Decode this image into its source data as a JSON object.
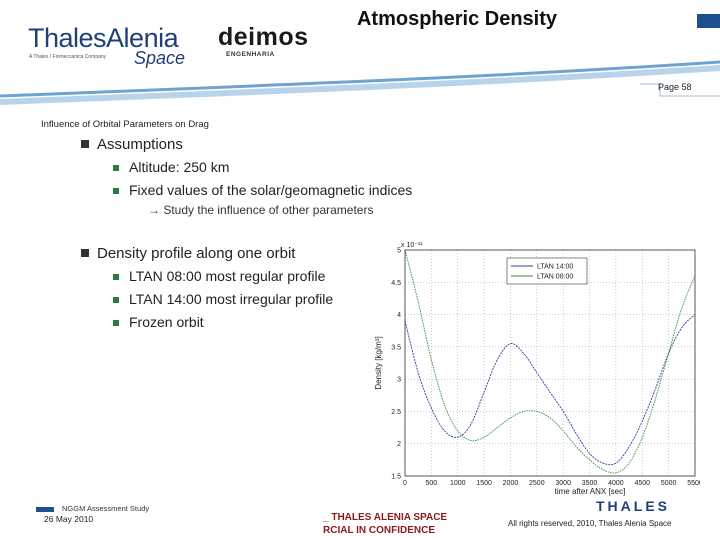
{
  "header": {
    "title": "Atmospheric Density",
    "logo_thales": {
      "name": "ThalesAlenia",
      "subtitle": "A Thales / Finmeccanica Company",
      "space": "Space"
    },
    "logo_deimos": {
      "name": "deimos",
      "subtitle": "ENGENHARIA"
    },
    "page_number": "Page 58"
  },
  "section_title": "Influence of Orbital Parameters on Drag",
  "bullets": [
    {
      "label": "Assumptions",
      "sub": [
        "Altitude: 250 km",
        "Fixed values of the solar/geomagnetic indices"
      ]
    },
    {
      "label": "Density profile along one orbit",
      "sub": [
        "LTAN 08:00 most regular profile",
        "LTAN 14:00 most irregular profile",
        "Frozen orbit"
      ]
    }
  ],
  "arrow_note": "→ Study the influence of other parameters",
  "chart_data": {
    "type": "line",
    "xlabel": "time after ANX [sec]",
    "ylabel": "Density [kg/m³]",
    "y_exponent": "x 10⁻¹¹",
    "xlim": [
      0,
      5500
    ],
    "ylim": [
      1.5,
      5
    ],
    "x_ticks": [
      "0",
      "500",
      "1000",
      "1500",
      "2000",
      "2500",
      "3000",
      "3500",
      "4000",
      "4500",
      "5000",
      "5500"
    ],
    "y_ticks": [
      "1.5",
      "2",
      "2.5",
      "3",
      "3.5",
      "4",
      "4.5",
      "5"
    ],
    "grid": true,
    "legend_position": "top-right",
    "series": [
      {
        "name": "LTAN 14:00",
        "color": "#2a3f9a",
        "x": [
          0,
          250,
          500,
          750,
          1000,
          1250,
          1500,
          1750,
          2000,
          2250,
          2500,
          2750,
          3000,
          3250,
          3500,
          3750,
          4000,
          4250,
          4500,
          4750,
          5000,
          5250,
          5500
        ],
        "y": [
          3.9,
          3.1,
          2.55,
          2.2,
          2.1,
          2.3,
          2.8,
          3.3,
          3.55,
          3.4,
          3.1,
          2.8,
          2.5,
          2.15,
          1.85,
          1.7,
          1.7,
          1.95,
          2.35,
          2.85,
          3.4,
          3.8,
          4.0
        ]
      },
      {
        "name": "LTAN 08:00",
        "color": "#2e8b3e",
        "x": [
          0,
          250,
          500,
          750,
          1000,
          1250,
          1500,
          1750,
          2000,
          2250,
          2500,
          2750,
          3000,
          3250,
          3500,
          3750,
          4000,
          4250,
          4500,
          4750,
          5000,
          5250,
          5500
        ],
        "y": [
          5.0,
          4.2,
          3.3,
          2.6,
          2.2,
          2.05,
          2.1,
          2.25,
          2.4,
          2.5,
          2.5,
          2.4,
          2.2,
          1.95,
          1.75,
          1.6,
          1.55,
          1.7,
          2.1,
          2.7,
          3.4,
          4.1,
          4.6
        ]
      }
    ]
  },
  "footer": {
    "project": "NGGM Assessment Study",
    "date": "26 May 2010",
    "company_line1": "_ THALES ALENIA SPACE",
    "company_line2": "RCIAL IN CONFIDENCE",
    "thales_logo": "THALES",
    "rights": "All rights reserved, 2010, Thales Alenia Space"
  },
  "colors": {
    "brand_blue": "#1f3f78",
    "accent": "#1e4f8f",
    "confidential": "#8b1a1a",
    "bullet_green": "#2b7a3e"
  }
}
